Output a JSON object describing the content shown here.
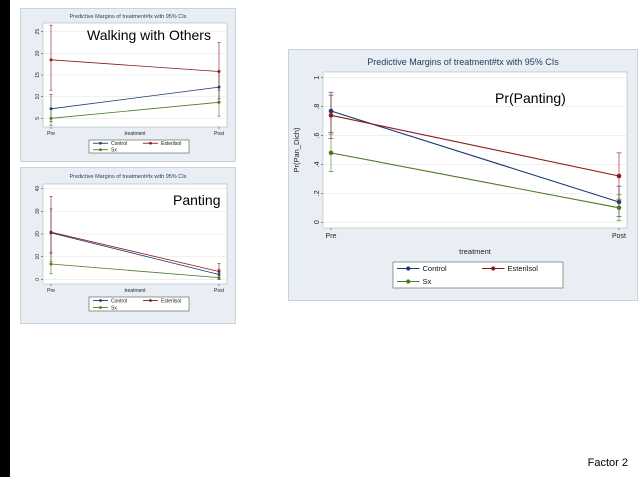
{
  "slide": {
    "footer": "Factor 2"
  },
  "colors": {
    "Control": "#1a3b73",
    "Esterilsol": "#8b1a1a",
    "Sx": "#4d7a1f",
    "panel_bg": "#e8eef3"
  },
  "chart_data": [
    {
      "id": "walking",
      "type": "line",
      "title": "Predictive Margins of treatment#tx with 95% CIs",
      "overlay_label": "Walking with Others",
      "xlabel": "treatment",
      "ylabel": "",
      "categories": [
        "Pre",
        "Post"
      ],
      "yticks": [
        "5",
        "10",
        "15",
        "20",
        "25"
      ],
      "ylim": [
        3,
        27
      ],
      "grid": true,
      "legend_position": "bottom",
      "series": [
        {
          "name": "Control",
          "values": [
            7.2,
            12.2
          ],
          "ci_low": [
            4.2,
            8.5
          ],
          "ci_high": [
            10.5,
            15.8
          ]
        },
        {
          "name": "Esterilsol",
          "values": [
            18.5,
            15.8
          ],
          "ci_low": [
            11.5,
            9.5
          ],
          "ci_high": [
            26.5,
            22.5
          ]
        },
        {
          "name": "Sx",
          "values": [
            5.0,
            8.7
          ],
          "ci_low": [
            3.3,
            5.5
          ],
          "ci_high": [
            7.0,
            11.5
          ]
        }
      ]
    },
    {
      "id": "panting-small",
      "type": "line",
      "title": "Predictive Margins of treatment#tx with 95% CIs",
      "overlay_label": "Panting",
      "xlabel": "treatment",
      "ylabel": "",
      "categories": [
        "Pre",
        "Post"
      ],
      "yticks": [
        "0",
        "10",
        "20",
        "30",
        "40"
      ],
      "ylim": [
        -2,
        42
      ],
      "grid": true,
      "legend_position": "bottom",
      "series": [
        {
          "name": "Control",
          "values": [
            20.5,
            2.2
          ],
          "ci_low": [
            12.0,
            0.0
          ],
          "ci_high": [
            31.0,
            4.5
          ]
        },
        {
          "name": "Esterilsol",
          "values": [
            20.8,
            3.5
          ],
          "ci_low": [
            8.0,
            0.8
          ],
          "ci_high": [
            36.5,
            7.0
          ]
        },
        {
          "name": "Sx",
          "values": [
            6.8,
            0.8
          ],
          "ci_low": [
            2.5,
            0.0
          ],
          "ci_high": [
            11.5,
            2.2
          ]
        }
      ]
    },
    {
      "id": "panting-large",
      "type": "line",
      "title": "Predictive Margins of treatment#tx with 95% CIs",
      "overlay_label": "Pr(Panting)",
      "xlabel": "treatment",
      "ylabel": "Pr(Pan_Dich)",
      "categories": [
        "Pre",
        "Post"
      ],
      "yticks": [
        "0",
        ".2",
        ".4",
        ".6",
        ".8",
        "1"
      ],
      "ylim": [
        -0.04,
        1.04
      ],
      "grid": true,
      "legend_position": "bottom",
      "series": [
        {
          "name": "Control",
          "values": [
            0.77,
            0.14
          ],
          "ci_low": [
            0.62,
            0.04
          ],
          "ci_high": [
            0.9,
            0.25
          ]
        },
        {
          "name": "Esterilsol",
          "values": [
            0.74,
            0.32
          ],
          "ci_low": [
            0.58,
            0.16
          ],
          "ci_high": [
            0.88,
            0.48
          ]
        },
        {
          "name": "Sx",
          "values": [
            0.48,
            0.1
          ],
          "ci_low": [
            0.35,
            0.01
          ],
          "ci_high": [
            0.61,
            0.19
          ]
        }
      ]
    }
  ]
}
